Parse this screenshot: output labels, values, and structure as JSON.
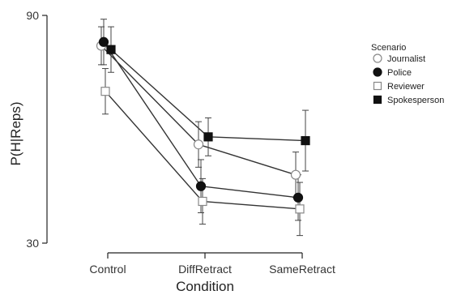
{
  "chart_data": {
    "type": "line",
    "xlabel": "Condition",
    "ylabel": "P(H|Reps)",
    "categories": [
      "Control",
      "DiffRetract",
      "SameRetract"
    ],
    "ylim": [
      30,
      90
    ],
    "yticks": [
      "90",
      "30"
    ],
    "grid": false,
    "legend": {
      "title": "Scenario",
      "placement": "right"
    },
    "series": [
      {
        "name": "Journalist",
        "marker": "circle-open",
        "values": [
          82,
          56,
          48
        ],
        "errors": [
          5,
          6,
          6
        ]
      },
      {
        "name": "Police",
        "marker": "circle-filled",
        "values": [
          83,
          45,
          42
        ],
        "errors": [
          6,
          7,
          6
        ]
      },
      {
        "name": "Reviewer",
        "marker": "square-open",
        "values": [
          70,
          41,
          39
        ],
        "errors": [
          6,
          6,
          7
        ]
      },
      {
        "name": "Spokesperson",
        "marker": "square-filled",
        "values": [
          81,
          58,
          57
        ],
        "errors": [
          6,
          5,
          8
        ]
      }
    ]
  }
}
